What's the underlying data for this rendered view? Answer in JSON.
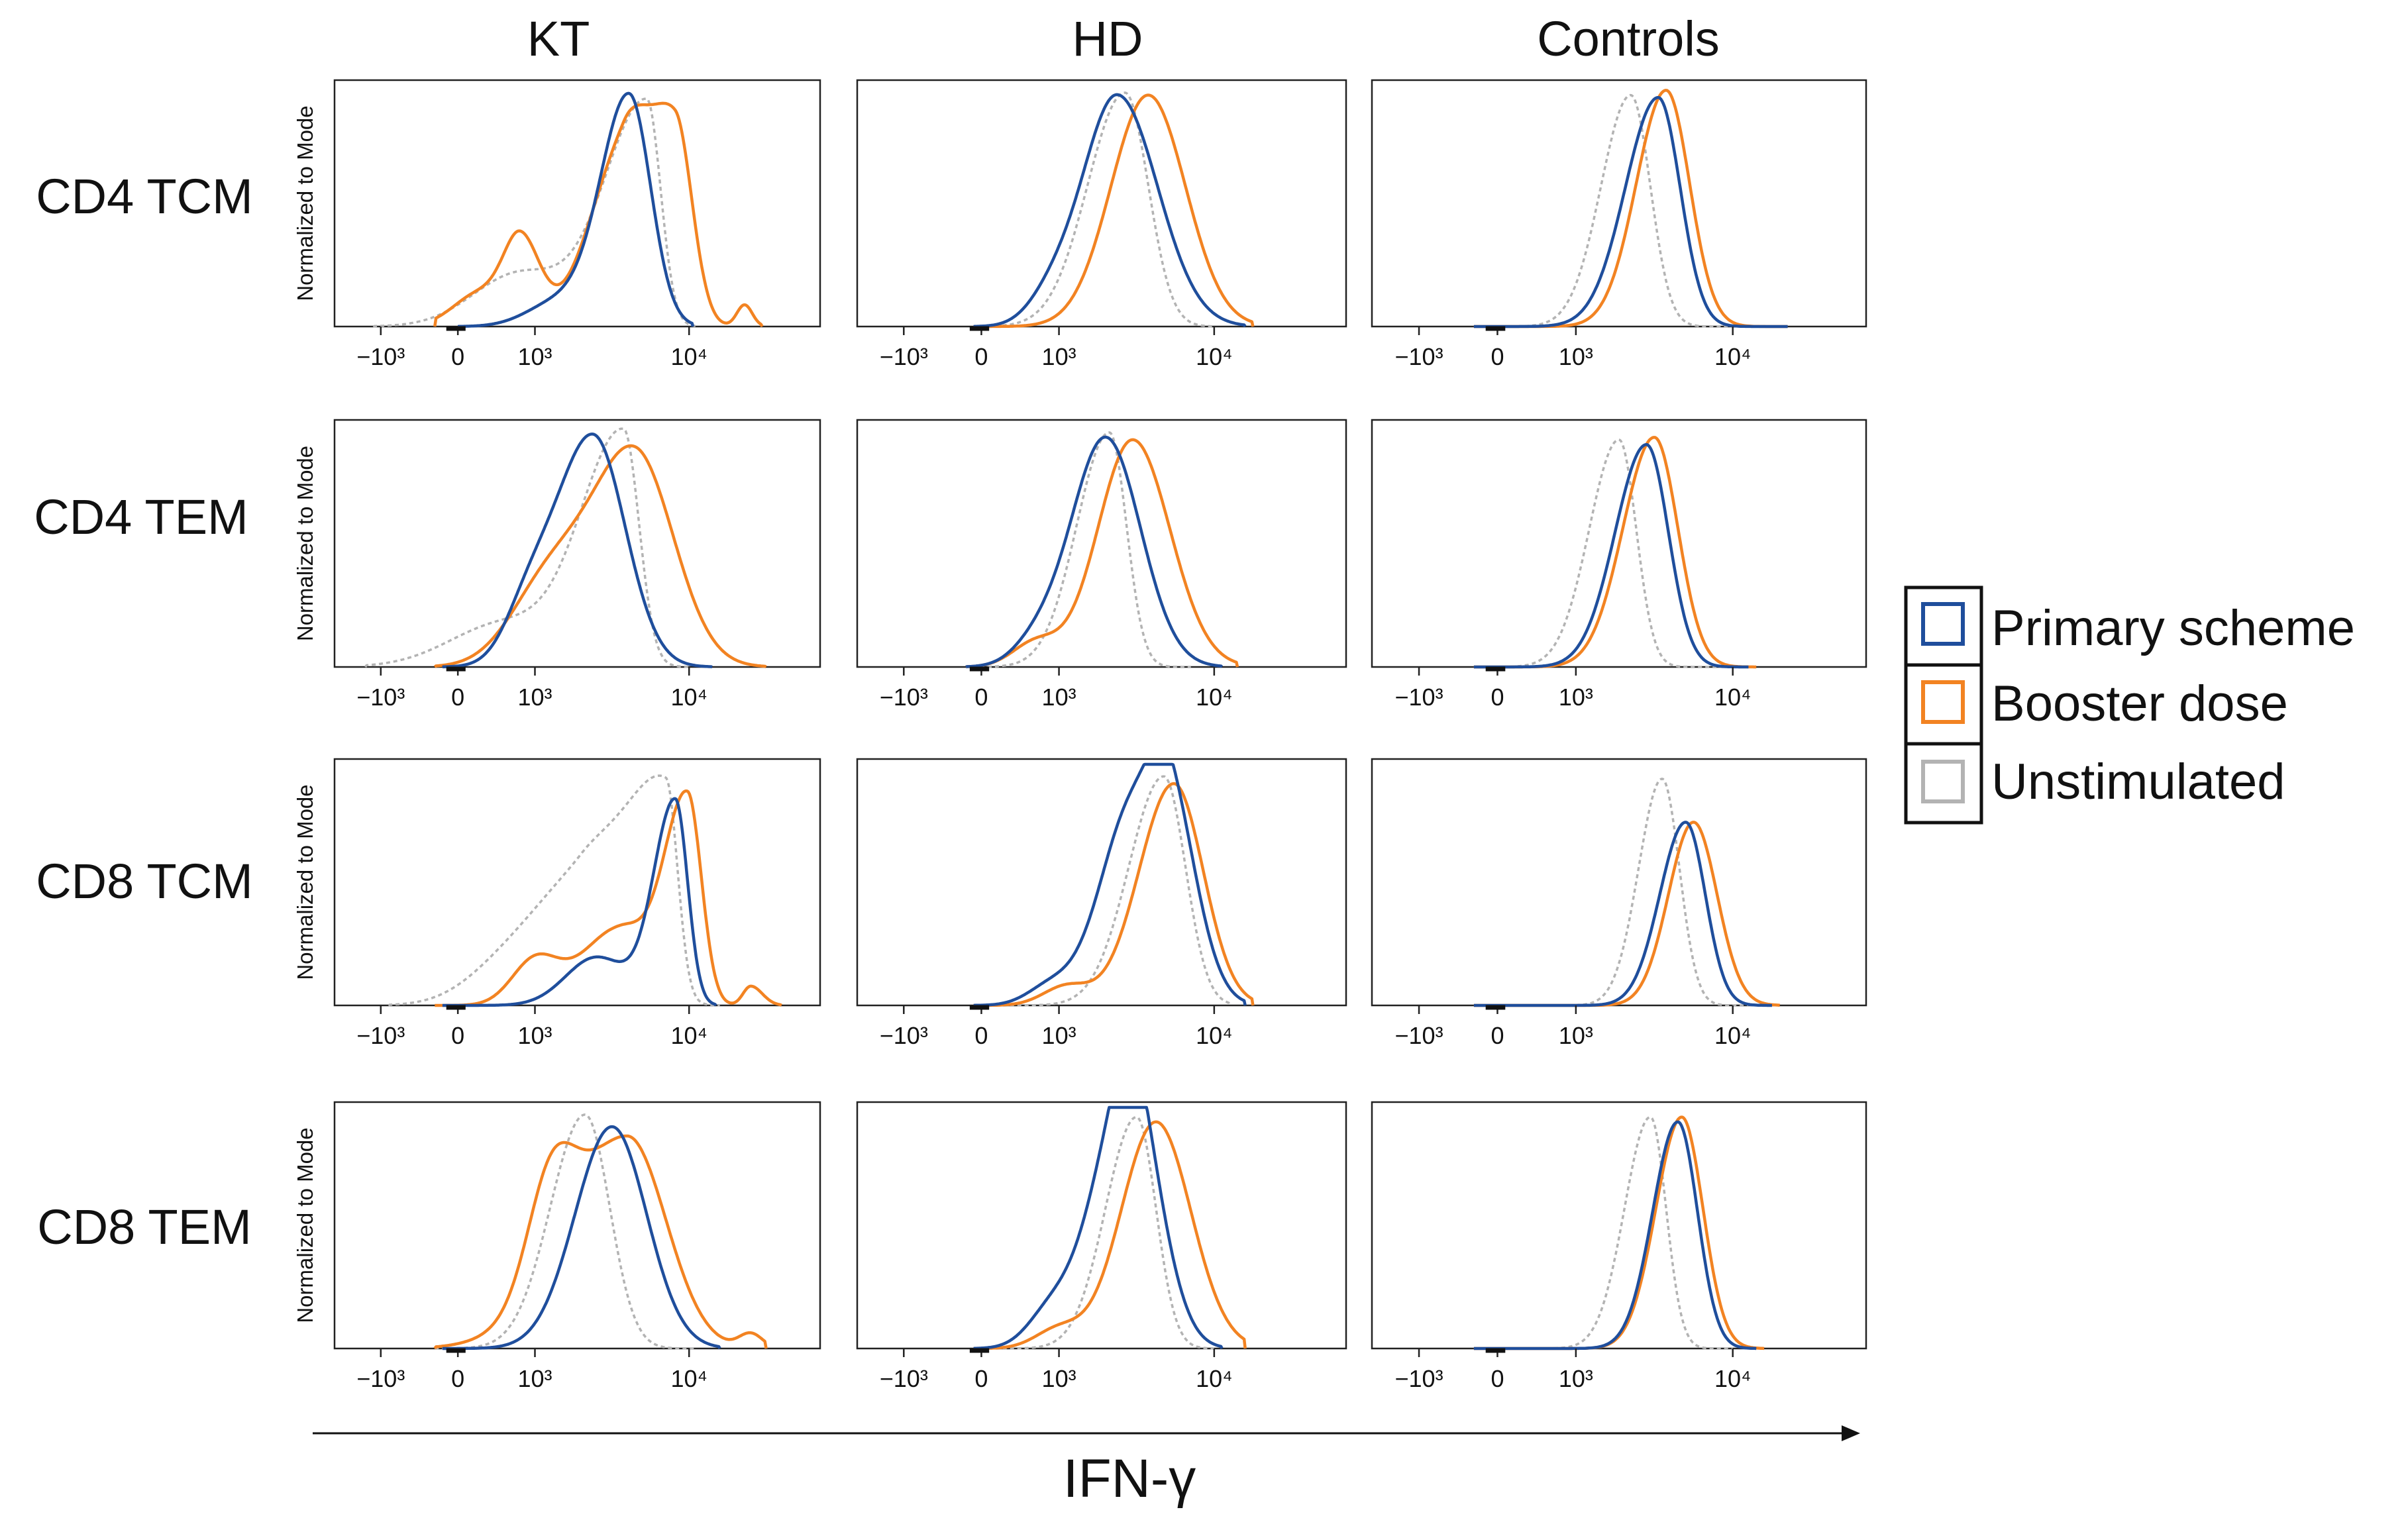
{
  "chart_data": {
    "type": "histogram-grid",
    "column_titles": [
      "KT",
      "HD",
      "Controls"
    ],
    "row_labels": [
      "CD4 TCM",
      "CD4 TEM",
      "CD8 TCM",
      "CD8 TEM"
    ],
    "ylabel": "Normalized to Mode",
    "xlabel": "IFN-γ",
    "x_ticks": [
      "−10³",
      "0",
      "10³",
      "10⁴"
    ],
    "xlim": [
      -1.6,
      4.7
    ],
    "ylim": [
      0,
      100
    ],
    "legend": {
      "position": "right",
      "items": [
        {
          "label": "Primary scheme",
          "color": "#1f4e9c",
          "dashed": false
        },
        {
          "label": "Booster dose",
          "color": "#f28322",
          "dashed": false
        },
        {
          "label": "Unstimulated",
          "color": "#b3b3b3",
          "dashed": true
        }
      ]
    },
    "series_style": {
      "primary": {
        "color": "#1f4e9c",
        "dashed": false
      },
      "booster": {
        "color": "#f28322",
        "dashed": false
      },
      "unstim": {
        "color": "#b3b3b3",
        "dashed": true
      }
    },
    "panels": [
      {
        "row": 0,
        "col": 0,
        "curves": {
          "primary": {
            "peaks": [
              [
                2.22,
                96,
                0.37,
                0.28
              ],
              [
                1.3,
                10,
                0.4,
                0.4
              ]
            ],
            "x0": 0.0,
            "x1": 3.05
          },
          "booster": {
            "peaks": [
              [
                2.82,
                84,
                0.36,
                0.22
              ],
              [
                2.15,
                70,
                0.45,
                0.3
              ],
              [
                0.82,
                34,
                0.22,
                0.25
              ],
              [
                0.3,
                14,
                0.35,
                0.35
              ],
              [
                3.72,
                9,
                0.1,
                0.1
              ]
            ],
            "x0": -0.3,
            "x1": 3.95
          },
          "unstim": {
            "peaks": [
              [
                2.45,
                94,
                0.55,
                0.18
              ],
              [
                0.8,
                22,
                0.6,
                0.6
              ]
            ],
            "x0": -1.1,
            "x1": 3.1
          }
        }
      },
      {
        "row": 0,
        "col": 1,
        "curves": {
          "primary": {
            "peaks": [
              [
                1.75,
                96,
                0.45,
                0.52
              ],
              [
                0.9,
                10,
                0.3,
                0.3
              ]
            ],
            "x0": -0.1,
            "x1": 3.4
          },
          "booster": {
            "peaks": [
              [
                2.15,
                96,
                0.48,
                0.48
              ]
            ],
            "x0": -0.1,
            "x1": 3.5
          },
          "unstim": {
            "peaks": [
              [
                1.85,
                97,
                0.48,
                0.3
              ]
            ],
            "x0": -0.1,
            "x1": 3.0
          }
        }
      },
      {
        "row": 0,
        "col": 2,
        "curves": {
          "primary": {
            "peaks": [
              [
                2.05,
                95,
                0.42,
                0.28
              ]
            ],
            "x0": -0.3,
            "x1": 3.7
          },
          "booster": {
            "peaks": [
              [
                2.15,
                98,
                0.38,
                0.3
              ]
            ],
            "x0": -0.3,
            "x1": 3.7
          },
          "unstim": {
            "peaks": [
              [
                1.7,
                96,
                0.38,
                0.25
              ]
            ],
            "x0": -0.3,
            "x1": 3.2
          }
        }
      },
      {
        "row": 1,
        "col": 0,
        "curves": {
          "primary": {
            "peaks": [
              [
                1.75,
                96,
                0.5,
                0.42
              ],
              [
                0.9,
                18,
                0.3,
                0.3
              ]
            ],
            "x0": -0.2,
            "x1": 3.3
          },
          "booster": {
            "peaks": [
              [
                2.3,
                88,
                0.55,
                0.5
              ],
              [
                1.2,
                35,
                0.5,
                0.5
              ]
            ],
            "x0": -0.3,
            "x1": 4.0
          },
          "unstim": {
            "peaks": [
              [
                2.15,
                97,
                0.55,
                0.2
              ],
              [
                0.6,
                18,
                0.7,
                0.7
              ]
            ],
            "x0": -1.2,
            "x1": 3.0
          }
        }
      },
      {
        "row": 1,
        "col": 1,
        "curves": {
          "primary": {
            "peaks": [
              [
                1.6,
                95,
                0.45,
                0.45
              ],
              [
                0.7,
                8,
                0.3,
                0.3
              ]
            ],
            "x0": -0.2,
            "x1": 3.1
          },
          "booster": {
            "peaks": [
              [
                1.95,
                94,
                0.45,
                0.48
              ],
              [
                0.7,
                10,
                0.3,
                0.3
              ]
            ],
            "x0": -0.2,
            "x1": 3.3
          },
          "unstim": {
            "peaks": [
              [
                1.65,
                97,
                0.42,
                0.22
              ]
            ],
            "x0": -0.2,
            "x1": 2.7
          }
        }
      },
      {
        "row": 1,
        "col": 2,
        "curves": {
          "primary": {
            "peaks": [
              [
                1.9,
                92,
                0.4,
                0.28
              ]
            ],
            "x0": -0.3,
            "x1": 3.2
          },
          "booster": {
            "peaks": [
              [
                2.0,
                95,
                0.4,
                0.3
              ]
            ],
            "x0": -0.3,
            "x1": 3.3
          },
          "unstim": {
            "peaks": [
              [
                1.55,
                94,
                0.38,
                0.22
              ]
            ],
            "x0": -0.3,
            "x1": 2.9
          }
        }
      },
      {
        "row": 2,
        "col": 0,
        "curves": {
          "primary": {
            "peaks": [
              [
                2.82,
                85,
                0.28,
                0.16
              ],
              [
                1.8,
                20,
                0.4,
                0.4
              ]
            ],
            "x0": -0.2,
            "x1": 3.35
          },
          "booster": {
            "peaks": [
              [
                2.98,
                86,
                0.3,
                0.18
              ],
              [
                2.1,
                32,
                0.5,
                0.4
              ],
              [
                1.0,
                18,
                0.3,
                0.3
              ],
              [
                3.8,
                8,
                0.1,
                0.15
              ]
            ],
            "x0": -0.3,
            "x1": 4.2
          },
          "unstim": {
            "peaks": [
              [
                2.7,
                90,
                0.55,
                0.15
              ],
              [
                1.6,
                50,
                0.7,
                0.5
              ],
              [
                0.5,
                8,
                0.5,
                0.5
              ]
            ],
            "x0": -0.9,
            "x1": 3.4
          }
        }
      },
      {
        "row": 2,
        "col": 1,
        "curves": {
          "primary": {
            "peaks": [
              [
                1.95,
                82,
                0.42,
                0.42
              ],
              [
                2.45,
                62,
                0.25,
                0.35
              ],
              [
                0.9,
                8,
                0.3,
                0.3
              ]
            ],
            "x0": -0.1,
            "x1": 3.4
          },
          "booster": {
            "peaks": [
              [
                2.48,
                92,
                0.45,
                0.38
              ],
              [
                1.1,
                8,
                0.3,
                0.3
              ]
            ],
            "x0": -0.1,
            "x1": 3.5
          },
          "unstim": {
            "peaks": [
              [
                2.35,
                95,
                0.45,
                0.28
              ]
            ],
            "x0": -0.1,
            "x1": 3.2
          }
        }
      },
      {
        "row": 2,
        "col": 2,
        "curves": {
          "primary": {
            "peaks": [
              [
                2.4,
                76,
                0.33,
                0.25
              ]
            ],
            "x0": -0.3,
            "x1": 3.5
          },
          "booster": {
            "peaks": [
              [
                2.5,
                76,
                0.32,
                0.3
              ]
            ],
            "x0": -0.3,
            "x1": 3.6
          },
          "unstim": {
            "peaks": [
              [
                2.1,
                94,
                0.3,
                0.22
              ]
            ],
            "x0": -0.3,
            "x1": 3.2
          }
        }
      },
      {
        "row": 3,
        "col": 0,
        "curves": {
          "primary": {
            "peaks": [
              [
                2.0,
                92,
                0.48,
                0.45
              ]
            ],
            "x0": -0.2,
            "x1": 3.4
          },
          "booster": {
            "peaks": [
              [
                2.2,
                88,
                0.8,
                0.5
              ],
              [
                1.2,
                40,
                0.3,
                0.3
              ],
              [
                3.8,
                6,
                0.15,
                0.15
              ]
            ],
            "x0": -0.3,
            "x1": 4.0
          },
          "unstim": {
            "peaks": [
              [
                1.65,
                97,
                0.45,
                0.32
              ]
            ],
            "x0": -0.3,
            "x1": 3.1
          }
        }
      },
      {
        "row": 3,
        "col": 1,
        "curves": {
          "primary": {
            "peaks": [
              [
                1.72,
                82,
                0.38,
                0.3
              ],
              [
                2.05,
                70,
                0.25,
                0.35
              ],
              [
                0.9,
                15,
                0.3,
                0.3
              ]
            ],
            "x0": -0.1,
            "x1": 3.1
          },
          "booster": {
            "peaks": [
              [
                2.25,
                94,
                0.45,
                0.45
              ],
              [
                1.0,
                8,
                0.3,
                0.3
              ]
            ],
            "x0": -0.1,
            "x1": 3.4
          },
          "unstim": {
            "peaks": [
              [
                2.0,
                96,
                0.4,
                0.25
              ]
            ],
            "x0": -0.1,
            "x1": 3.0
          }
        }
      },
      {
        "row": 3,
        "col": 2,
        "curves": {
          "primary": {
            "peaks": [
              [
                2.3,
                94,
                0.32,
                0.25
              ]
            ],
            "x0": -0.3,
            "x1": 3.3
          },
          "booster": {
            "peaks": [
              [
                2.35,
                96,
                0.33,
                0.27
              ]
            ],
            "x0": -0.3,
            "x1": 3.4
          },
          "unstim": {
            "peaks": [
              [
                1.95,
                96,
                0.33,
                0.2
              ]
            ],
            "x0": -0.3,
            "x1": 3.0
          }
        }
      }
    ]
  }
}
